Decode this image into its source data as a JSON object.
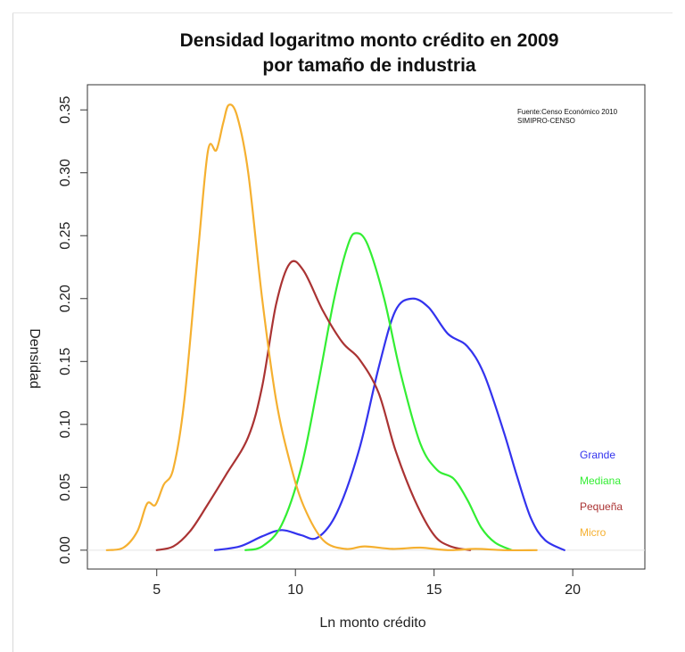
{
  "chart_data": {
    "type": "line",
    "title": "Densidad logaritmo monto crédito en 2009",
    "subtitle": "por tamaño de industria",
    "xlabel": "Ln monto crédito",
    "ylabel": "Densidad",
    "xlim": [
      2.5,
      22.6
    ],
    "ylim": [
      -0.015,
      0.37
    ],
    "x_ticks": [
      5,
      10,
      15,
      20
    ],
    "y_ticks": [
      0.0,
      0.05,
      0.1,
      0.15,
      0.2,
      0.25,
      0.3,
      0.35
    ],
    "y_tick_labels": [
      "0.00",
      "0.05",
      "0.10",
      "0.15",
      "0.20",
      "0.25",
      "0.30",
      "0.35"
    ],
    "annotation": [
      "Fuente:Censo Económico 2010",
      "SIMIPRO-CENSO"
    ],
    "legend_position": "bottom-right",
    "series": [
      {
        "name": "Grande",
        "color": "#3333ee",
        "points": [
          [
            7.1,
            0.0
          ],
          [
            8.0,
            0.003
          ],
          [
            8.8,
            0.011
          ],
          [
            9.5,
            0.016
          ],
          [
            10.2,
            0.012
          ],
          [
            10.8,
            0.01
          ],
          [
            11.5,
            0.03
          ],
          [
            12.3,
            0.08
          ],
          [
            13.0,
            0.145
          ],
          [
            13.6,
            0.19
          ],
          [
            14.2,
            0.2
          ],
          [
            14.8,
            0.193
          ],
          [
            15.5,
            0.172
          ],
          [
            16.2,
            0.162
          ],
          [
            16.8,
            0.14
          ],
          [
            17.5,
            0.095
          ],
          [
            18.0,
            0.058
          ],
          [
            18.5,
            0.025
          ],
          [
            19.0,
            0.008
          ],
          [
            19.7,
            0.0
          ]
        ]
      },
      {
        "name": "Mediana",
        "color": "#33ee33",
        "points": [
          [
            8.2,
            0.0
          ],
          [
            8.8,
            0.003
          ],
          [
            9.5,
            0.02
          ],
          [
            10.2,
            0.065
          ],
          [
            10.8,
            0.13
          ],
          [
            11.4,
            0.2
          ],
          [
            11.9,
            0.243
          ],
          [
            12.2,
            0.252
          ],
          [
            12.6,
            0.243
          ],
          [
            13.2,
            0.2
          ],
          [
            13.8,
            0.14
          ],
          [
            14.5,
            0.085
          ],
          [
            15.1,
            0.064
          ],
          [
            15.7,
            0.057
          ],
          [
            16.2,
            0.04
          ],
          [
            16.7,
            0.018
          ],
          [
            17.2,
            0.006
          ],
          [
            17.8,
            0.0
          ]
        ]
      },
      {
        "name": "Pequeña",
        "color": "#aa3333",
        "points": [
          [
            5.0,
            0.0
          ],
          [
            5.6,
            0.003
          ],
          [
            6.2,
            0.015
          ],
          [
            6.8,
            0.035
          ],
          [
            7.5,
            0.06
          ],
          [
            8.3,
            0.09
          ],
          [
            8.8,
            0.13
          ],
          [
            9.3,
            0.195
          ],
          [
            9.8,
            0.228
          ],
          [
            10.3,
            0.222
          ],
          [
            11.0,
            0.19
          ],
          [
            11.7,
            0.165
          ],
          [
            12.3,
            0.152
          ],
          [
            13.0,
            0.125
          ],
          [
            13.6,
            0.08
          ],
          [
            14.3,
            0.04
          ],
          [
            15.0,
            0.012
          ],
          [
            15.6,
            0.003
          ],
          [
            16.3,
            0.0
          ]
        ]
      },
      {
        "name": "Micro",
        "color": "#f5b030",
        "points": [
          [
            3.2,
            0.0
          ],
          [
            3.8,
            0.002
          ],
          [
            4.3,
            0.015
          ],
          [
            4.65,
            0.037
          ],
          [
            4.95,
            0.036
          ],
          [
            5.25,
            0.052
          ],
          [
            5.6,
            0.065
          ],
          [
            6.0,
            0.12
          ],
          [
            6.5,
            0.24
          ],
          [
            6.85,
            0.318
          ],
          [
            7.15,
            0.318
          ],
          [
            7.4,
            0.34
          ],
          [
            7.6,
            0.354
          ],
          [
            7.9,
            0.345
          ],
          [
            8.3,
            0.3
          ],
          [
            8.8,
            0.2
          ],
          [
            9.3,
            0.12
          ],
          [
            9.8,
            0.07
          ],
          [
            10.3,
            0.035
          ],
          [
            11.0,
            0.008
          ],
          [
            11.8,
            0.001
          ],
          [
            12.5,
            0.003
          ],
          [
            13.5,
            0.001
          ],
          [
            14.5,
            0.002
          ],
          [
            15.5,
            0.0
          ],
          [
            16.5,
            0.001
          ],
          [
            17.5,
            0.0
          ],
          [
            18.7,
            0.0
          ]
        ]
      }
    ]
  }
}
